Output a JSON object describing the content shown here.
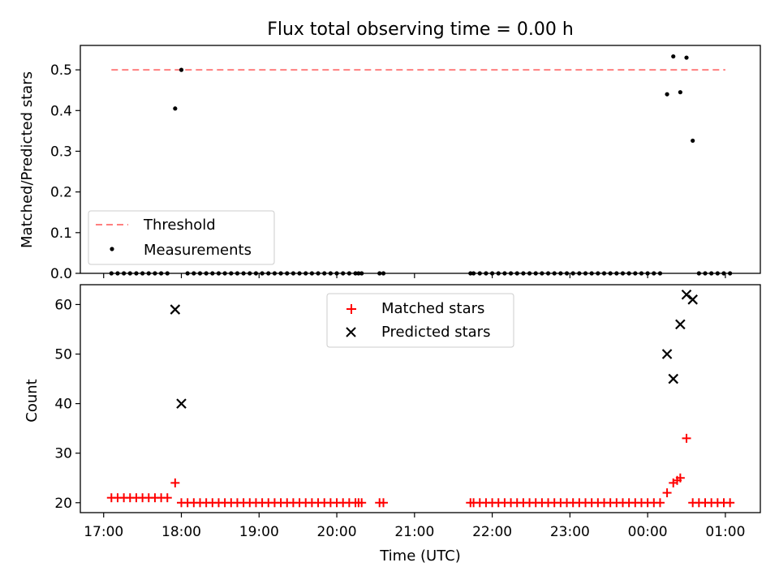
{
  "figure": {
    "title": "Flux total observing time = 0.00 h",
    "xlabel": "Time (UTC)",
    "xticks": [
      "17:00",
      "18:00",
      "19:00",
      "20:00",
      "21:00",
      "22:00",
      "23:00",
      "00:00",
      "01:00"
    ],
    "xtick_hours": [
      17,
      18,
      19,
      20,
      21,
      22,
      23,
      24,
      25
    ]
  },
  "chart_data": [
    {
      "type": "scatter",
      "title": "Flux total observing time = 0.00 h",
      "ylabel": "Matched/Predicted stars",
      "xlim_hours": [
        16.7,
        25.45
      ],
      "ylim": [
        0,
        0.56
      ],
      "yticks": [
        0.0,
        0.1,
        0.2,
        0.3,
        0.4,
        0.5
      ],
      "ytick_labels": [
        "0.0",
        "0.1",
        "0.2",
        "0.3",
        "0.4",
        "0.5"
      ],
      "legend_position": "lower-left",
      "threshold": {
        "name": "Threshold",
        "value": 0.5,
        "x_range_hours": [
          17.1,
          25.0
        ],
        "color": "#ff7f7f"
      },
      "measurements": {
        "name": "Measurements",
        "color": "#000000",
        "points": [
          [
            17.1,
            0
          ],
          [
            17.18,
            0
          ],
          [
            17.26,
            0
          ],
          [
            17.34,
            0
          ],
          [
            17.42,
            0
          ],
          [
            17.5,
            0
          ],
          [
            17.58,
            0
          ],
          [
            17.66,
            0
          ],
          [
            17.74,
            0
          ],
          [
            17.82,
            0
          ],
          [
            17.92,
            0.405
          ],
          [
            18.0,
            0.5
          ],
          [
            18.08,
            0
          ],
          [
            18.16,
            0
          ],
          [
            18.24,
            0
          ],
          [
            18.32,
            0
          ],
          [
            18.4,
            0
          ],
          [
            18.48,
            0
          ],
          [
            18.56,
            0
          ],
          [
            18.64,
            0
          ],
          [
            18.72,
            0
          ],
          [
            18.8,
            0
          ],
          [
            18.88,
            0
          ],
          [
            18.96,
            0
          ],
          [
            19.04,
            0
          ],
          [
            19.12,
            0
          ],
          [
            19.2,
            0
          ],
          [
            19.28,
            0
          ],
          [
            19.36,
            0
          ],
          [
            19.44,
            0
          ],
          [
            19.52,
            0
          ],
          [
            19.6,
            0
          ],
          [
            19.68,
            0
          ],
          [
            19.76,
            0
          ],
          [
            19.84,
            0
          ],
          [
            19.92,
            0
          ],
          [
            20.0,
            0
          ],
          [
            20.08,
            0
          ],
          [
            20.16,
            0
          ],
          [
            20.24,
            0
          ],
          [
            20.28,
            0
          ],
          [
            20.32,
            0
          ],
          [
            20.55,
            0
          ],
          [
            20.6,
            0
          ],
          [
            21.72,
            0
          ],
          [
            21.76,
            0
          ],
          [
            21.84,
            0
          ],
          [
            21.92,
            0
          ],
          [
            22.0,
            0
          ],
          [
            22.08,
            0
          ],
          [
            22.16,
            0
          ],
          [
            22.24,
            0
          ],
          [
            22.32,
            0
          ],
          [
            22.4,
            0
          ],
          [
            22.48,
            0
          ],
          [
            22.56,
            0
          ],
          [
            22.64,
            0
          ],
          [
            22.72,
            0
          ],
          [
            22.8,
            0
          ],
          [
            22.88,
            0
          ],
          [
            22.96,
            0
          ],
          [
            23.04,
            0
          ],
          [
            23.12,
            0
          ],
          [
            23.2,
            0
          ],
          [
            23.28,
            0
          ],
          [
            23.36,
            0
          ],
          [
            23.44,
            0
          ],
          [
            23.52,
            0
          ],
          [
            23.6,
            0
          ],
          [
            23.68,
            0
          ],
          [
            23.76,
            0
          ],
          [
            23.84,
            0
          ],
          [
            23.92,
            0
          ],
          [
            24.0,
            0
          ],
          [
            24.08,
            0
          ],
          [
            24.16,
            0
          ],
          [
            24.25,
            0.44
          ],
          [
            24.33,
            0.533
          ],
          [
            24.42,
            0.445
          ],
          [
            24.5,
            0.53
          ],
          [
            24.58,
            0.326
          ],
          [
            24.66,
            0
          ],
          [
            24.74,
            0
          ],
          [
            24.82,
            0
          ],
          [
            24.9,
            0
          ],
          [
            24.98,
            0
          ],
          [
            25.06,
            0
          ]
        ]
      }
    },
    {
      "type": "scatter",
      "ylabel": "Count",
      "xlabel": "Time (UTC)",
      "xlim_hours": [
        16.7,
        25.45
      ],
      "ylim": [
        18,
        64
      ],
      "yticks": [
        20,
        30,
        40,
        50,
        60
      ],
      "ytick_labels": [
        "20",
        "30",
        "40",
        "50",
        "60"
      ],
      "legend_position": "upper-center",
      "series": [
        {
          "name": "Matched stars",
          "marker": "+",
          "color": "#ff0000",
          "points": [
            [
              17.1,
              21
            ],
            [
              17.18,
              21
            ],
            [
              17.26,
              21
            ],
            [
              17.34,
              21
            ],
            [
              17.42,
              21
            ],
            [
              17.5,
              21
            ],
            [
              17.58,
              21
            ],
            [
              17.66,
              21
            ],
            [
              17.74,
              21
            ],
            [
              17.82,
              21
            ],
            [
              17.92,
              24
            ],
            [
              18.0,
              20
            ],
            [
              18.08,
              20
            ],
            [
              18.16,
              20
            ],
            [
              18.24,
              20
            ],
            [
              18.32,
              20
            ],
            [
              18.4,
              20
            ],
            [
              18.48,
              20
            ],
            [
              18.56,
              20
            ],
            [
              18.64,
              20
            ],
            [
              18.72,
              20
            ],
            [
              18.8,
              20
            ],
            [
              18.88,
              20
            ],
            [
              18.96,
              20
            ],
            [
              19.04,
              20
            ],
            [
              19.12,
              20
            ],
            [
              19.2,
              20
            ],
            [
              19.28,
              20
            ],
            [
              19.36,
              20
            ],
            [
              19.44,
              20
            ],
            [
              19.52,
              20
            ],
            [
              19.6,
              20
            ],
            [
              19.68,
              20
            ],
            [
              19.76,
              20
            ],
            [
              19.84,
              20
            ],
            [
              19.92,
              20
            ],
            [
              20.0,
              20
            ],
            [
              20.08,
              20
            ],
            [
              20.16,
              20
            ],
            [
              20.24,
              20
            ],
            [
              20.28,
              20
            ],
            [
              20.32,
              20
            ],
            [
              20.55,
              20
            ],
            [
              20.6,
              20
            ],
            [
              21.72,
              20
            ],
            [
              21.76,
              20
            ],
            [
              21.84,
              20
            ],
            [
              21.92,
              20
            ],
            [
              22.0,
              20
            ],
            [
              22.08,
              20
            ],
            [
              22.16,
              20
            ],
            [
              22.24,
              20
            ],
            [
              22.32,
              20
            ],
            [
              22.4,
              20
            ],
            [
              22.48,
              20
            ],
            [
              22.56,
              20
            ],
            [
              22.64,
              20
            ],
            [
              22.72,
              20
            ],
            [
              22.8,
              20
            ],
            [
              22.88,
              20
            ],
            [
              22.96,
              20
            ],
            [
              23.04,
              20
            ],
            [
              23.12,
              20
            ],
            [
              23.2,
              20
            ],
            [
              23.28,
              20
            ],
            [
              23.36,
              20
            ],
            [
              23.44,
              20
            ],
            [
              23.52,
              20
            ],
            [
              23.6,
              20
            ],
            [
              23.68,
              20
            ],
            [
              23.76,
              20
            ],
            [
              23.84,
              20
            ],
            [
              23.92,
              20
            ],
            [
              24.0,
              20
            ],
            [
              24.08,
              20
            ],
            [
              24.16,
              20
            ],
            [
              24.25,
              22
            ],
            [
              24.33,
              24
            ],
            [
              24.38,
              24.5
            ],
            [
              24.42,
              25
            ],
            [
              24.5,
              33
            ],
            [
              24.58,
              20
            ],
            [
              24.66,
              20
            ],
            [
              24.74,
              20
            ],
            [
              24.82,
              20
            ],
            [
              24.9,
              20
            ],
            [
              24.98,
              20
            ],
            [
              25.06,
              20
            ]
          ]
        },
        {
          "name": "Predicted stars",
          "marker": "x",
          "color": "#000000",
          "points": [
            [
              17.92,
              59
            ],
            [
              18.0,
              40
            ],
            [
              24.25,
              50
            ],
            [
              24.33,
              45
            ],
            [
              24.42,
              56
            ],
            [
              24.5,
              62
            ],
            [
              24.58,
              61
            ]
          ]
        }
      ]
    }
  ]
}
